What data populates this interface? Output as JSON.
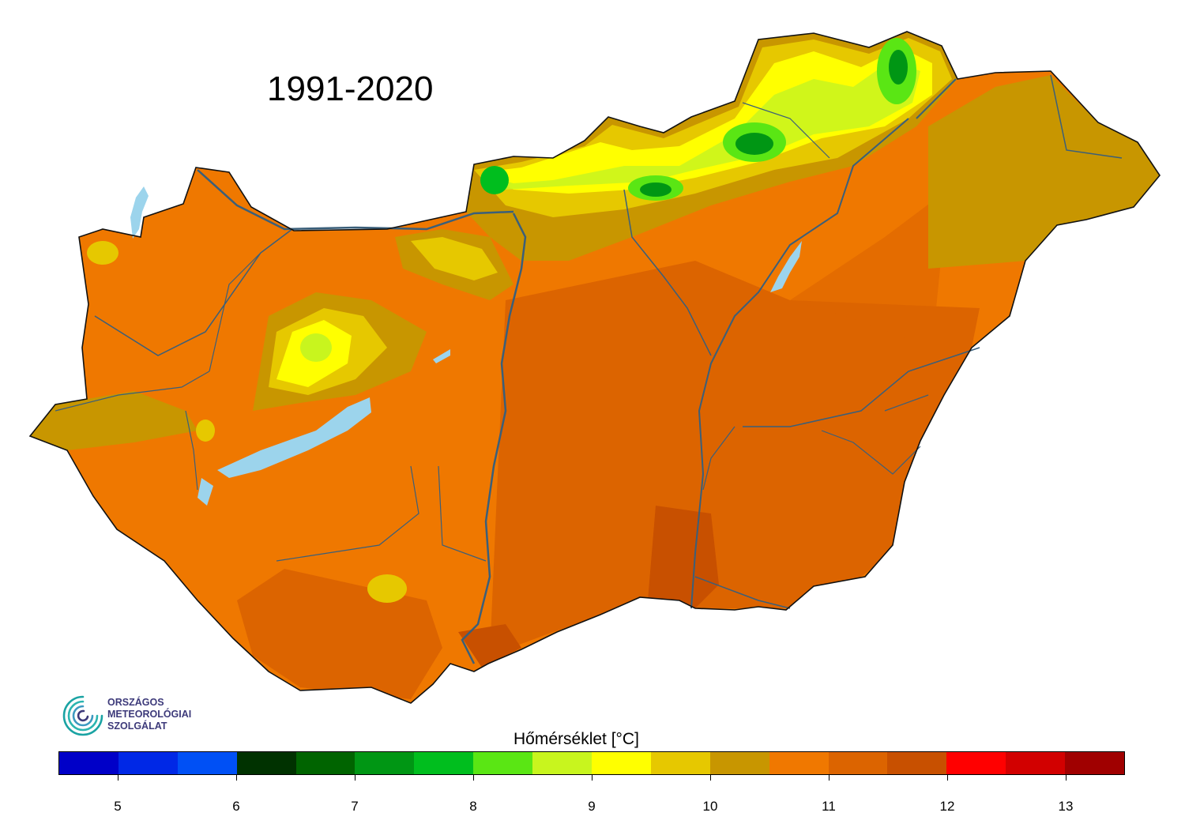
{
  "title": "1991-2020",
  "logo": {
    "lines": [
      "ORSZÁGOS",
      "METEOROLÓGIAI",
      "SZOLGÁLAT"
    ],
    "color": "#3d3a7a",
    "accent": "#1aa3a3"
  },
  "legend": {
    "title": "Hőmérséklet [°C]",
    "min": 4.5,
    "max": 13.5,
    "step": 0.5,
    "colors": [
      "#0000c8",
      "#0028e6",
      "#0050f5",
      "#003200",
      "#006400",
      "#009614",
      "#00be1e",
      "#5ae614",
      "#c8f51e",
      "#ffff00",
      "#e6c800",
      "#c89600",
      "#f07800",
      "#dc6400",
      "#c85000",
      "#ff0000",
      "#d20000",
      "#a00000"
    ],
    "ticks": [
      "5",
      "6",
      "7",
      "8",
      "9",
      "10",
      "11",
      "12",
      "13"
    ]
  },
  "map": {
    "water_color": "#9cd4ec",
    "river_color": "#3a5f7a",
    "base_color": "#e07300"
  }
}
